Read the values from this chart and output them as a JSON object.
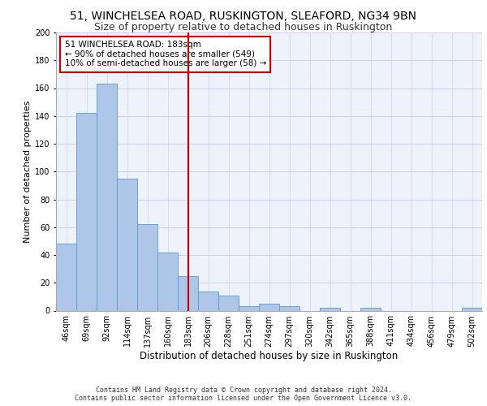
{
  "title": "51, WINCHELSEA ROAD, RUSKINGTON, SLEAFORD, NG34 9BN",
  "subtitle": "Size of property relative to detached houses in Ruskington",
  "xlabel": "Distribution of detached houses by size in Ruskington",
  "ylabel": "Number of detached properties",
  "bar_labels": [
    "46sqm",
    "69sqm",
    "92sqm",
    "114sqm",
    "137sqm",
    "160sqm",
    "183sqm",
    "206sqm",
    "228sqm",
    "251sqm",
    "274sqm",
    "297sqm",
    "320sqm",
    "342sqm",
    "365sqm",
    "388sqm",
    "411sqm",
    "434sqm",
    "456sqm",
    "479sqm",
    "502sqm"
  ],
  "bar_values": [
    48,
    142,
    163,
    95,
    62,
    42,
    25,
    14,
    11,
    3,
    5,
    3,
    0,
    2,
    0,
    2,
    0,
    0,
    0,
    0,
    2
  ],
  "bar_color": "#aec6e8",
  "bar_edge_color": "#5b9bd5",
  "highlight_index": 6,
  "highlight_line_color": "#cc0000",
  "annotation_text": "51 WINCHELSEA ROAD: 183sqm\n← 90% of detached houses are smaller (549)\n10% of semi-detached houses are larger (58) →",
  "annotation_box_color": "#cc0000",
  "ylim": [
    0,
    200
  ],
  "yticks": [
    0,
    20,
    40,
    60,
    80,
    100,
    120,
    140,
    160,
    180,
    200
  ],
  "footer_line1": "Contains HM Land Registry data © Crown copyright and database right 2024.",
  "footer_line2": "Contains public sector information licensed under the Open Government Licence v3.0.",
  "bg_color": "#eef2fa",
  "grid_color": "#c8d4e8",
  "title_fontsize": 10,
  "subtitle_fontsize": 9,
  "xlabel_fontsize": 8.5,
  "ylabel_fontsize": 8,
  "tick_fontsize": 7,
  "annotation_fontsize": 7.5,
  "footer_fontsize": 6
}
